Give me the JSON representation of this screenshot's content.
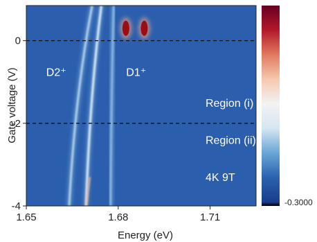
{
  "chart_data": {
    "type": "heatmap",
    "xlabel": "Energy (eV)",
    "ylabel": "Gate voltage (V)",
    "xlim": [
      1.65,
      1.725
    ],
    "ylim": [
      -4,
      0.85
    ],
    "xticks": [
      {
        "value": 1.65,
        "label": "1.65"
      },
      {
        "value": 1.68,
        "label": "1.68"
      },
      {
        "value": 1.71,
        "label": "1.71"
      }
    ],
    "yticks": [
      {
        "value": 0,
        "label": "0"
      },
      {
        "value": -2,
        "label": "-2"
      },
      {
        "value": -4,
        "label": "-4"
      }
    ],
    "dashed_lines_y": [
      0,
      -2
    ],
    "annotations": [
      {
        "text": "D2⁺",
        "x": 1.6565,
        "y": -0.85
      },
      {
        "text": "D1⁺",
        "x": 1.6826,
        "y": -0.85
      },
      {
        "text": "Region (i)",
        "x": 1.7085,
        "y": -1.6
      },
      {
        "text": "Region (ii)",
        "x": 1.7085,
        "y": -2.5
      },
      {
        "text": "4K 9T",
        "x": 1.7085,
        "y": -3.4
      }
    ],
    "colorbar": {
      "colormap": "RdBu_r",
      "min_label": "-0.3000",
      "max_label": "",
      "colors": [
        "#000000",
        "#1a3d8c",
        "#2a62b0",
        "#6aa6d6",
        "#d6e6f2",
        "#f2f2f2",
        "#f6c8b0",
        "#e07a5f",
        "#b2182b",
        "#67001f"
      ]
    },
    "background_color": "#2b5fae",
    "peaks": [
      {
        "name": "D2 left branch",
        "x_at_top": 1.6715,
        "x_at_bottom": 1.664,
        "color": "#cfe4f4"
      },
      {
        "name": "D2 right branch",
        "x_at_top": 1.6745,
        "x_at_bottom": 1.6695,
        "color": "#e8f2fa"
      },
      {
        "name": "D1 branch",
        "x_at_top": 1.6785,
        "x_at_bottom": 1.6775,
        "color": "#9ac4e6"
      }
    ],
    "bright_spots": [
      {
        "x": 1.6825,
        "y": 0.3,
        "color": "#9b0d12"
      },
      {
        "x": 1.6885,
        "y": 0.3,
        "color": "#9b0d12"
      }
    ]
  }
}
